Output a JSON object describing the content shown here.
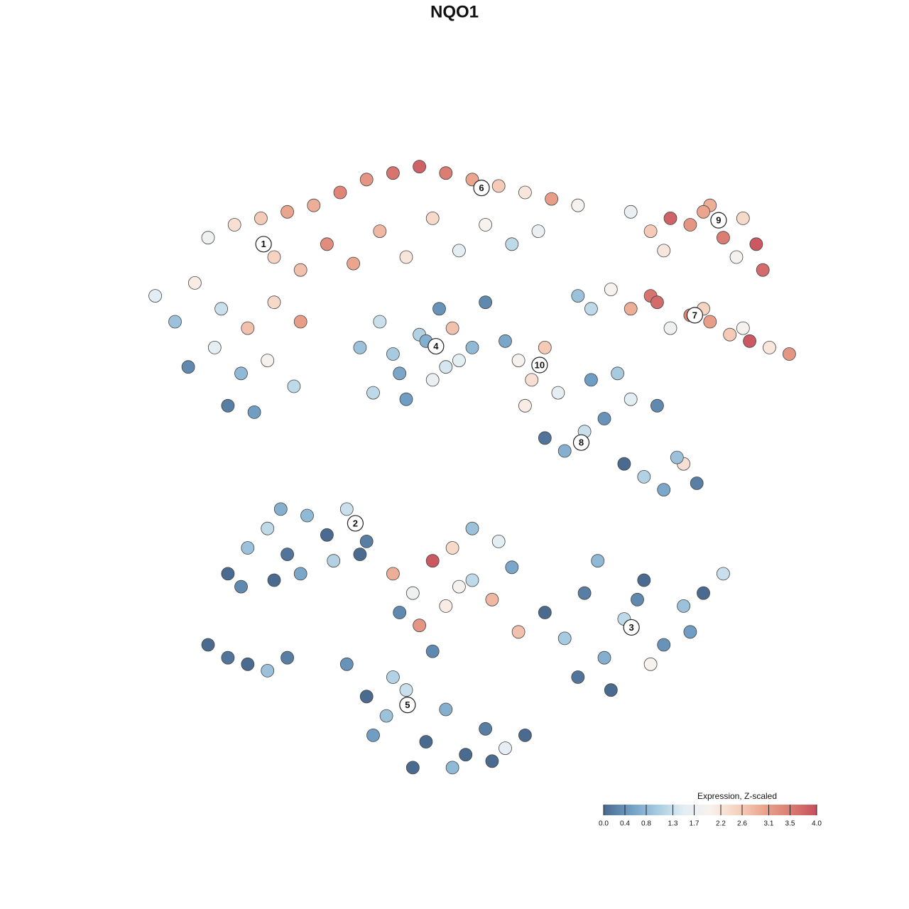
{
  "chart_data": {
    "type": "scatter",
    "title": "NQO1",
    "xlim": [
      0,
      100
    ],
    "ylim": [
      0,
      100
    ],
    "x": [
      10,
      14,
      18,
      22,
      26,
      30,
      34,
      38,
      42,
      46,
      50,
      54,
      58,
      62,
      66,
      20,
      28,
      36,
      44,
      52,
      60,
      24,
      32,
      40,
      48,
      56,
      2,
      5,
      8,
      12,
      16,
      20,
      24,
      7,
      11,
      15,
      19,
      23,
      13,
      17,
      74,
      77,
      80,
      83,
      86,
      88,
      91,
      93,
      79,
      85,
      90,
      94,
      71,
      74,
      77,
      80,
      83,
      86,
      89,
      92,
      95,
      98,
      78,
      85,
      91,
      33,
      36,
      39,
      42,
      45,
      48,
      50,
      35,
      40,
      44,
      47,
      38,
      43,
      46,
      57,
      59,
      61,
      63,
      55,
      52,
      58,
      66,
      68,
      61,
      64,
      67,
      70,
      73,
      76,
      79,
      82,
      84,
      68,
      72,
      78,
      81,
      74,
      13,
      16,
      19,
      22,
      25,
      28,
      31,
      34,
      15,
      20,
      24,
      29,
      33,
      21,
      10,
      13,
      16,
      19,
      22,
      38,
      41,
      44,
      47,
      50,
      53,
      56,
      42,
      46,
      50,
      54,
      39,
      57,
      48,
      61,
      64,
      67,
      70,
      73,
      76,
      79,
      82,
      85,
      88,
      66,
      71,
      77,
      83,
      69,
      75,
      31,
      34,
      37,
      40,
      43,
      46,
      49,
      52,
      55,
      58,
      35,
      41,
      47,
      53,
      38,
      44
    ],
    "y": [
      83,
      85,
      86,
      87,
      88,
      90,
      92,
      93,
      94,
      93,
      92,
      91,
      90,
      89,
      88,
      80,
      82,
      84,
      86,
      85,
      84,
      78,
      79,
      80,
      81,
      82,
      74,
      70,
      76,
      72,
      69,
      73,
      70,
      63,
      66,
      62,
      64,
      60,
      57,
      56,
      87,
      84,
      86,
      85,
      88,
      83,
      86,
      82,
      81,
      87,
      80,
      78,
      75,
      72,
      74,
      69,
      71,
      70,
      68,
      67,
      66,
      65,
      73,
      72,
      69,
      66,
      70,
      62,
      68,
      72,
      64,
      66,
      59,
      58,
      61,
      69,
      65,
      67,
      63,
      64,
      61,
      66,
      59,
      67,
      73,
      57,
      74,
      72,
      52,
      50,
      53,
      55,
      48,
      46,
      44,
      48,
      45,
      61,
      62,
      57,
      49,
      58,
      31,
      35,
      38,
      34,
      40,
      37,
      41,
      36,
      29,
      30,
      31,
      33,
      34,
      41,
      20,
      18,
      17,
      16,
      18,
      31,
      28,
      33,
      35,
      30,
      27,
      32,
      23,
      26,
      38,
      36,
      25,
      22,
      29,
      25,
      21,
      28,
      18,
      24,
      30,
      20,
      26,
      28,
      31,
      15,
      13,
      17,
      22,
      33,
      27,
      17,
      12,
      9,
      13,
      5,
      10,
      3,
      7,
      4,
      6,
      6,
      1,
      1,
      2,
      15,
      19
    ],
    "values": [
      1.8,
      2.3,
      2.6,
      3.0,
      2.9,
      3.4,
      3.2,
      3.6,
      3.8,
      3.5,
      3.0,
      2.6,
      2.2,
      3.1,
      2.0,
      2.5,
      3.3,
      2.8,
      2.4,
      2.0,
      1.7,
      2.7,
      3.0,
      2.2,
      1.5,
      1.2,
      1.5,
      0.9,
      2.1,
      1.3,
      2.7,
      2.4,
      3.1,
      0.3,
      1.6,
      0.8,
      1.9,
      1.2,
      0.2,
      0.5,
      1.7,
      2.6,
      3.8,
      3.2,
      2.9,
      3.5,
      2.4,
      3.9,
      2.2,
      3.0,
      1.9,
      3.7,
      2.0,
      2.9,
      3.6,
      1.8,
      3.4,
      3.1,
      2.6,
      3.9,
      2.2,
      3.2,
      3.7,
      2.5,
      1.9,
      0.9,
      1.3,
      0.6,
      1.1,
      0.4,
      1.5,
      0.8,
      1.2,
      0.5,
      1.7,
      2.7,
      1.0,
      0.7,
      1.4,
      1.9,
      2.3,
      2.6,
      1.6,
      0.6,
      0.3,
      2.1,
      0.9,
      1.2,
      0.1,
      0.7,
      1.3,
      0.4,
      0.0,
      1.1,
      0.6,
      2.3,
      0.2,
      0.5,
      1.0,
      0.3,
      0.9,
      1.5,
      0.0,
      0.9,
      1.2,
      0.1,
      0.8,
      0.0,
      1.3,
      0.2,
      0.3,
      0.0,
      0.6,
      1.1,
      0.0,
      0.7,
      0.0,
      0.1,
      0.0,
      0.9,
      0.2,
      2.9,
      1.8,
      3.9,
      2.4,
      1.2,
      2.8,
      0.6,
      3.2,
      2.1,
      0.9,
      1.5,
      0.3,
      2.7,
      1.9,
      0.0,
      1.0,
      0.2,
      0.7,
      1.2,
      0.0,
      0.4,
      0.9,
      0.0,
      1.3,
      0.1,
      0.0,
      2.0,
      0.5,
      0.8,
      0.3,
      0.4,
      0.0,
      0.9,
      1.3,
      0.0,
      0.7,
      0.0,
      0.2,
      1.6,
      0.0,
      0.5,
      0.0,
      0.8,
      0.0,
      1.1,
      0.3
    ],
    "annotations": [
      {
        "text": "1",
        "x": 18.4,
        "y": 82
      },
      {
        "text": "6",
        "x": 51.4,
        "y": 90.7
      },
      {
        "text": "9",
        "x": 87.3,
        "y": 85.7
      },
      {
        "text": "7",
        "x": 83.7,
        "y": 71
      },
      {
        "text": "4",
        "x": 44.5,
        "y": 66.2
      },
      {
        "text": "10",
        "x": 60.2,
        "y": 63.3
      },
      {
        "text": "8",
        "x": 66.5,
        "y": 51.3
      },
      {
        "text": "2",
        "x": 32.3,
        "y": 38.8
      },
      {
        "text": "3",
        "x": 74.1,
        "y": 22.7
      },
      {
        "text": "5",
        "x": 40.2,
        "y": 10.7
      }
    ],
    "colorbar": {
      "title": "Expression, Z-scaled",
      "clim": [
        0,
        4
      ],
      "ticks": [
        {
          "value": 0,
          "label": "0.0"
        },
        0.4,
        0.8,
        1.3,
        1.7,
        2.2,
        2.6,
        3.1,
        3.5,
        {
          "value": 4,
          "label": "4.0"
        }
      ],
      "colorscale": [
        "#4a6a8f",
        "#6f9dc4",
        "#a6cbe0",
        "#e2edf4",
        "#f8f2ee",
        "#f7d3c1",
        "#eba58e",
        "#db7d72",
        "#c6505e"
      ]
    }
  }
}
